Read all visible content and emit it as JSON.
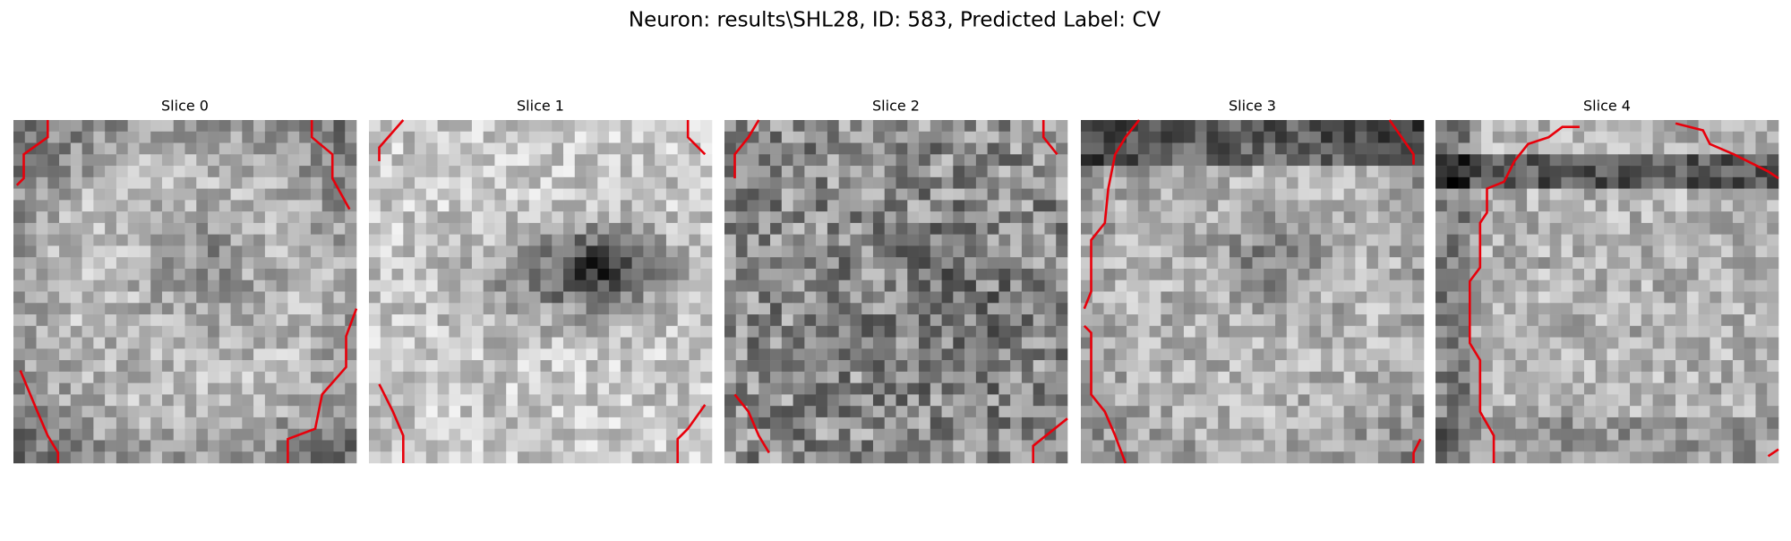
{
  "title": "Neuron: results\\SHL28, ID: 583, Predicted Label: CV",
  "panels": [
    {
      "title": "Slice 0"
    },
    {
      "title": "Slice 1"
    },
    {
      "title": "Slice 2"
    },
    {
      "title": "Slice 3"
    },
    {
      "title": "Slice 4"
    }
  ]
}
